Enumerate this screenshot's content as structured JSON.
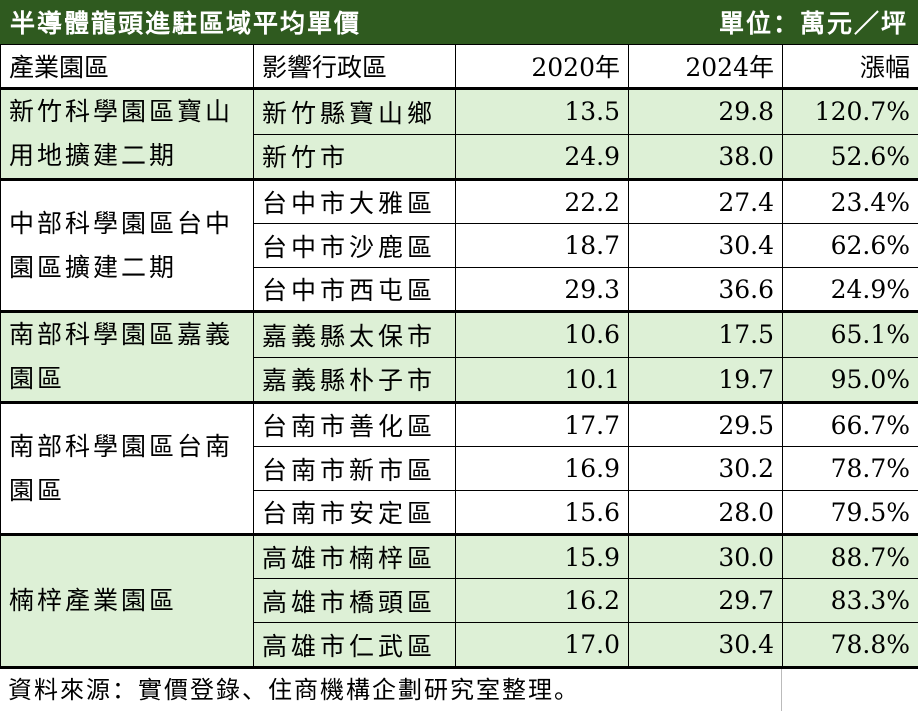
{
  "title": "半導體龍頭進駐區域平均單價",
  "unit": "單位：萬元／坪",
  "headers": [
    "產業園區",
    "影響行政區",
    "2020年",
    "2024年",
    "漲幅"
  ],
  "groups": [
    {
      "park": "新竹科學園區寶山用地擴建二期",
      "rows": [
        [
          "新竹縣寶山鄉",
          "13.5",
          "29.8",
          "120.7%"
        ],
        [
          "新竹市",
          "24.9",
          "38.0",
          "52.6%"
        ]
      ]
    },
    {
      "park": "中部科學園區台中園區擴建二期",
      "rows": [
        [
          "台中市大雅區",
          "22.2",
          "27.4",
          "23.4%"
        ],
        [
          "台中市沙鹿區",
          "18.7",
          "30.4",
          "62.6%"
        ],
        [
          "台中市西屯區",
          "29.3",
          "36.6",
          "24.9%"
        ]
      ]
    },
    {
      "park": "南部科學園區嘉義園區",
      "rows": [
        [
          "嘉義縣太保市",
          "10.6",
          "17.5",
          "65.1%"
        ],
        [
          "嘉義縣朴子市",
          "10.1",
          "19.7",
          "95.0%"
        ]
      ]
    },
    {
      "park": "南部科學園區台南園區",
      "rows": [
        [
          "台南市善化區",
          "17.7",
          "29.5",
          "66.7%"
        ],
        [
          "台南市新市區",
          "16.9",
          "30.2",
          "78.7%"
        ],
        [
          "台南市安定區",
          "15.6",
          "28.0",
          "79.5%"
        ]
      ]
    },
    {
      "park": "楠梓產業園區",
      "rows": [
        [
          "高雄市楠梓區",
          "15.9",
          "30.0",
          "88.7%"
        ],
        [
          "高雄市橋頭區",
          "16.2",
          "29.7",
          "83.3%"
        ],
        [
          "高雄市仁武區",
          "17.0",
          "30.4",
          "78.8%"
        ]
      ]
    }
  ],
  "source": "資料來源：實價登錄、住商機構企劃研究室整理。",
  "colors": {
    "title_bg": "#2f5a1f",
    "row_green": "#ddf0d6"
  }
}
